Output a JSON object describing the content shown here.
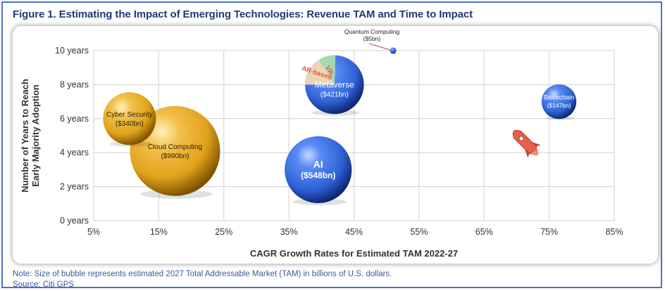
{
  "title": "Figure 1. Estimating the Impact of Emerging Technologies: Revenue TAM and Time to Impact",
  "note": "Note: Size of bubble represents estimated 2027 Total Addressable Market (TAM) in billions of U.S. dollars.",
  "source": "Source: Citi GPS",
  "chart_data": {
    "type": "scatter",
    "subtype": "bubble",
    "xlabel": "CAGR Growth Rates for Estimated TAM 2022-27",
    "ylabel": "Number of Years to Reach Early Majority Adoption",
    "ylabel_lines": [
      "Number of Years to Reach",
      "Early Majority Adoption"
    ],
    "xlim": [
      5,
      85
    ],
    "ylim": [
      0,
      10
    ],
    "x_ticks": [
      5,
      15,
      25,
      35,
      45,
      55,
      65,
      75,
      85
    ],
    "x_tick_labels": [
      "5%",
      "15%",
      "25%",
      "35%",
      "45%",
      "55%",
      "65%",
      "75%",
      "85%"
    ],
    "y_ticks": [
      0,
      2,
      4,
      6,
      8,
      10
    ],
    "y_tick_labels": [
      "0 years",
      "2 years",
      "4 years",
      "6 years",
      "8 years",
      "10 years"
    ],
    "grid": true,
    "bubbles": [
      {
        "name": "Cyber Security",
        "value_label": "($340bn)",
        "x": 10.5,
        "y": 6.0,
        "tam": 340,
        "color": "gold"
      },
      {
        "name": "Cloud Computing",
        "value_label": "($990bn)",
        "x": 17.5,
        "y": 4.1,
        "tam": 990,
        "color": "gold"
      },
      {
        "name": "AI",
        "value_label": "($548bn)",
        "x": 39.5,
        "y": 3.0,
        "tam": 548,
        "color": "blue"
      },
      {
        "name": "Metaverse",
        "value_label": "($421bn)",
        "x": 42.0,
        "y": 8.0,
        "tam": 421,
        "color": "blue"
      },
      {
        "name": "Blockchain",
        "value_label": "($147bn)",
        "x": 76.5,
        "y": 7.0,
        "tam": 147,
        "color": "blue"
      },
      {
        "name": "Quantum Computing",
        "value_label": "($5bn)",
        "x": 51.0,
        "y": 10.0,
        "tam": 5,
        "color": "blue"
      }
    ],
    "metaverse_segments": [
      "VR",
      "AR-based"
    ],
    "colors": {
      "gold": "#e0a21b",
      "blue": "#2f62d6",
      "grid": "#d0d0d0",
      "axis_text": "#333333",
      "ar": "#f7d7b5",
      "vr": "#a9dcb0",
      "ar_text": "#e05a3a",
      "rocket": "#e8604c"
    }
  }
}
